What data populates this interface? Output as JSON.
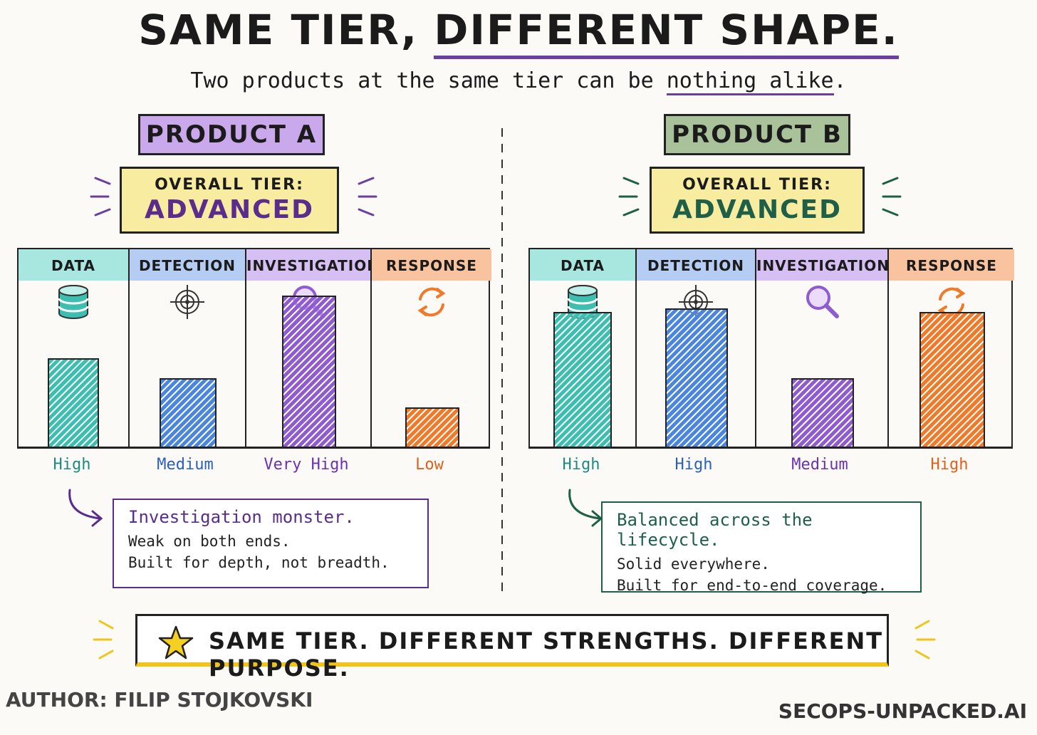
{
  "title": {
    "part1": "SAME TIER,",
    "part2": "DIFFERENT SHAPE."
  },
  "subtitle": {
    "pre": "Two products at the same tier can be",
    "emph": "nothing alike"
  },
  "colors": {
    "data": "#3cbfb0",
    "detection": "#4a86e0",
    "investigation": "#8e5bd0",
    "response": "#f07a2a",
    "productA": "#c9a8ec",
    "productB": "#a9c29a",
    "tier": "#f7eca0",
    "accentA": "#5a2d8c",
    "accentB": "#1f5f48"
  },
  "chart_data": [
    {
      "type": "bar",
      "title": "PRODUCT A",
      "overall_tier_label": "OVERALL TIER:",
      "overall_tier": "ADVANCED",
      "categories": [
        "DATA",
        "DETECTION",
        "INVESTIGATION",
        "RESPONSE"
      ],
      "icons": [
        "database-icon",
        "target-icon",
        "magnifier-icon",
        "refresh-icon"
      ],
      "values": [
        2.7,
        2.1,
        4.6,
        1.2
      ],
      "levels": [
        "High",
        "Medium",
        "Very High",
        "Low"
      ],
      "ylim": [
        0,
        6
      ],
      "note": {
        "heading": "Investigation monster.",
        "lines": [
          "Weak on both ends.",
          "Built for depth, not breadth."
        ]
      }
    },
    {
      "type": "bar",
      "title": "PRODUCT B",
      "overall_tier_label": "OVERALL TIER:",
      "overall_tier": "ADVANCED",
      "categories": [
        "DATA",
        "DETECTION",
        "INVESTIGATION",
        "RESPONSE"
      ],
      "icons": [
        "database-icon",
        "target-icon",
        "magnifier-icon",
        "refresh-icon"
      ],
      "values": [
        4.1,
        4.2,
        2.1,
        4.1
      ],
      "levels": [
        "High",
        "High",
        "Medium",
        "High"
      ],
      "ylim": [
        0,
        6
      ],
      "note": {
        "heading": "Balanced across the lifecycle.",
        "lines": [
          "Solid everywhere.",
          "Built for end-to-end coverage."
        ]
      }
    }
  ],
  "banner": "SAME TIER. DIFFERENT STRENGTHS. DIFFERENT PURPOSE.",
  "author": "AUTHOR: FILIP STOJKOVSKI",
  "site": "SECOPS-UNPACKED.AI"
}
